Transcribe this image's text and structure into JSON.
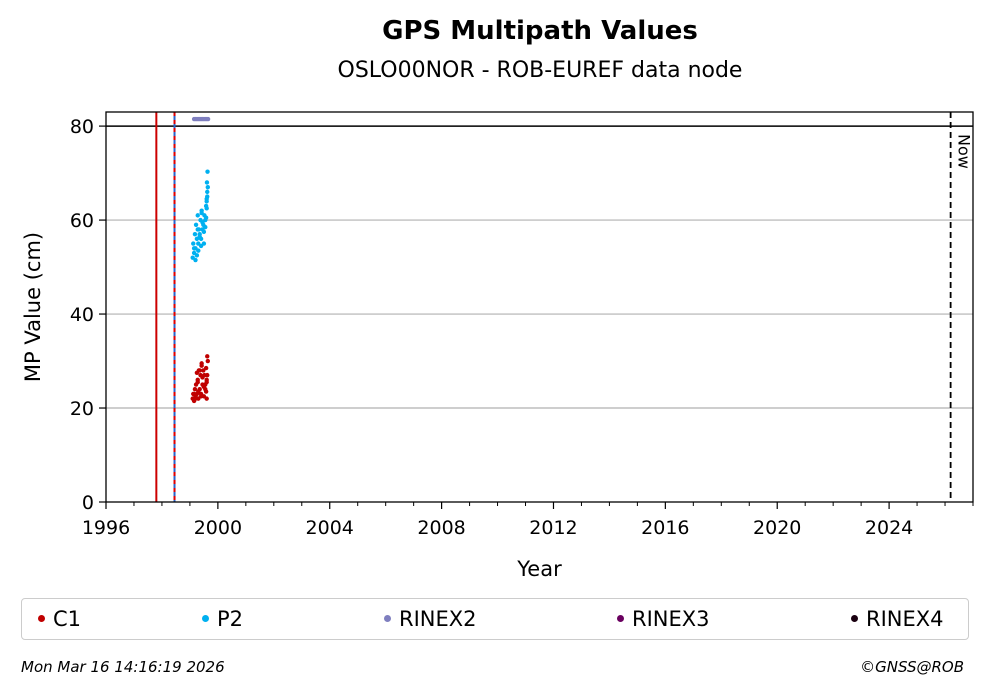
{
  "chart_data": {
    "type": "scatter",
    "title": "GPS Multipath Values",
    "subtitle": "OSLO00NOR - ROB-EUREF data node",
    "xlabel": "Year",
    "ylabel": "MP Value (cm)",
    "xlim": [
      1996,
      2027
    ],
    "ylim": [
      0,
      83
    ],
    "x_ticks": [
      1996,
      2000,
      2004,
      2008,
      2012,
      2016,
      2020,
      2024
    ],
    "y_ticks": [
      0,
      20,
      40,
      60,
      80
    ],
    "grid": "y",
    "threshold_line": 80,
    "event_lines": [
      {
        "x": 1997.8,
        "color": "#cc0000",
        "style": "solid"
      },
      {
        "x": 1998.45,
        "color": "#2a62c9",
        "style": "dashed-red-blue"
      }
    ],
    "now_line": {
      "x": 2026.2,
      "label": "Now"
    },
    "series": [
      {
        "name": "C1",
        "color": "#c00000",
        "x": [
          1999.1,
          1999.12,
          1999.15,
          1999.18,
          1999.2,
          1999.22,
          1999.25,
          1999.28,
          1999.3,
          1999.32,
          1999.35,
          1999.38,
          1999.4,
          1999.42,
          1999.45,
          1999.48,
          1999.5,
          1999.52,
          1999.55,
          1999.58,
          1999.6,
          1999.62,
          1999.64,
          1999.2,
          1999.3,
          1999.4,
          1999.5,
          1999.6,
          1999.25,
          1999.35,
          1999.45,
          1999.55,
          1999.62,
          1999.15,
          1999.28,
          1999.42,
          1999.58,
          1999.6
        ],
        "y": [
          22,
          23,
          21.5,
          24,
          22.5,
          25,
          23,
          26,
          22,
          28,
          24,
          27,
          23,
          29,
          25,
          28,
          22.5,
          27,
          24,
          28.5,
          26,
          31,
          30,
          22,
          23.5,
          22.5,
          24.5,
          25.5,
          27.5,
          28,
          26.5,
          25,
          27,
          23,
          25.5,
          29.5,
          23.5,
          22
        ]
      },
      {
        "name": "P2",
        "color": "#00b0f0",
        "x": [
          1999.1,
          1999.12,
          1999.15,
          1999.18,
          1999.2,
          1999.22,
          1999.25,
          1999.28,
          1999.3,
          1999.32,
          1999.35,
          1999.38,
          1999.4,
          1999.42,
          1999.45,
          1999.48,
          1999.5,
          1999.52,
          1999.55,
          1999.58,
          1999.6,
          1999.62,
          1999.64,
          1999.2,
          1999.3,
          1999.4,
          1999.5,
          1999.6,
          1999.25,
          1999.35,
          1999.45,
          1999.55,
          1999.62,
          1999.15,
          1999.28,
          1999.42,
          1999.58,
          1999.6,
          1999.63,
          1999.61
        ],
        "y": [
          52,
          55,
          53,
          57,
          54,
          59,
          56,
          61,
          55,
          58,
          57,
          60,
          56,
          62,
          58,
          59,
          55,
          61,
          60,
          63,
          64,
          66,
          67,
          51.5,
          53.5,
          54.5,
          57.5,
          62.5,
          52.5,
          56.5,
          59.5,
          58.5,
          65,
          54,
          58,
          61.5,
          60.5,
          64.5,
          70.3,
          68
        ]
      },
      {
        "name": "RINEX2",
        "color": "#7f7fbf",
        "x": [
          1999.15,
          1999.2,
          1999.25,
          1999.3,
          1999.35,
          1999.4,
          1999.45,
          1999.5,
          1999.55,
          1999.6,
          1999.65
        ],
        "y": [
          81.5,
          81.5,
          81.5,
          81.5,
          81.5,
          81.5,
          81.5,
          81.5,
          81.5,
          81.5,
          81.5
        ]
      },
      {
        "name": "RINEX3",
        "color": "#6a005f",
        "x": [],
        "y": []
      },
      {
        "name": "RINEX4",
        "color": "#1a0010",
        "x": [],
        "y": []
      }
    ]
  },
  "legend": {
    "items": [
      {
        "label": "C1",
        "color": "#c00000"
      },
      {
        "label": "P2",
        "color": "#00b0f0"
      },
      {
        "label": "RINEX2",
        "color": "#7f7fbf"
      },
      {
        "label": "RINEX3",
        "color": "#6a005f"
      },
      {
        "label": "RINEX4",
        "color": "#1a0010"
      }
    ]
  },
  "footer": {
    "date": "Mon Mar 16 14:16:19 2026",
    "credit": "©GNSS@ROB"
  }
}
